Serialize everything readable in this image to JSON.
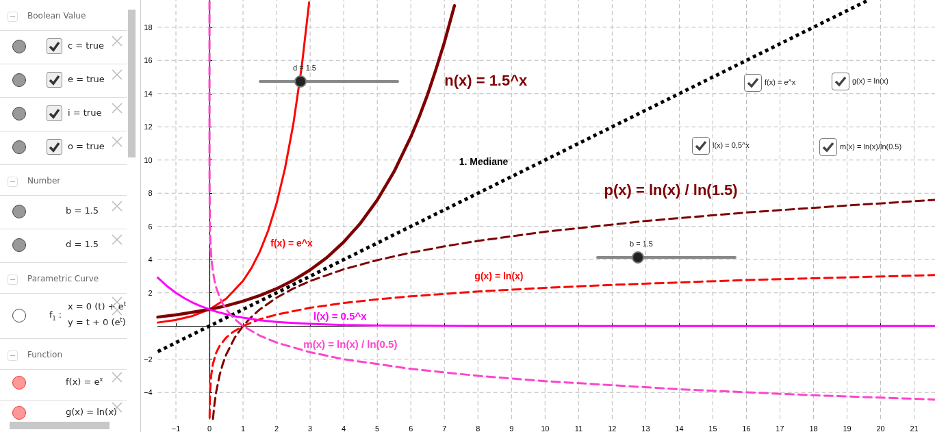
{
  "chart_data": [
    {
      "type": "other",
      "annotations": [
        "Boolean Value",
        "c = true",
        "e = true",
        "i = true",
        "o = true",
        "Number",
        "b = 1.5",
        "d = 1.5",
        "Parametric Curve",
        "f$_{1}$ :",
        "x = 0 (t) + e$^{t}$",
        "y = t + 0 (e$^{t}$)",
        "Function",
        "f(x) = e$^{x}$",
        "g(x) = ln(x)"
      ]
    },
    {
      "type": "line",
      "xlim": [
        -1.54,
        21.62
      ],
      "ylim": [
        -5.6,
        19.64
      ],
      "xticks": [
        -1,
        0,
        1,
        2,
        3,
        4,
        5,
        6,
        7,
        8,
        9,
        10,
        11,
        12,
        13,
        14,
        15,
        16,
        17,
        18,
        19,
        20,
        21
      ],
      "yticks": [
        -4,
        -2,
        2,
        4,
        6,
        8,
        10,
        12,
        14,
        16,
        18
      ],
      "grid": true,
      "marker": "none",
      "series": [
        {
          "name": "f(x) = e^x",
          "color": "#ff0000",
          "line_style": "solid",
          "x": [
            -1.54,
            -1,
            -0.5,
            0,
            0.5,
            1,
            1.25,
            1.5,
            1.75,
            2,
            2.25,
            2.5,
            2.75,
            2.97
          ],
          "values": [
            0.21,
            0.37,
            0.61,
            1,
            1.65,
            2.72,
            3.49,
            4.48,
            5.75,
            7.39,
            9.49,
            12.18,
            15.64,
            19.5
          ]
        },
        {
          "name": "n(x) = 1.5^x",
          "color": "#7f0000",
          "line_style": "solid",
          "x": [
            -1.54,
            -1,
            0,
            0.5,
            1,
            1.5,
            2,
            2.5,
            3,
            3.5,
            4,
            4.5,
            5,
            5.5,
            6,
            6.25,
            6.5,
            6.75,
            7,
            7.3
          ],
          "values": [
            0.54,
            0.67,
            1,
            1.22,
            1.5,
            1.84,
            2.25,
            2.76,
            3.38,
            4.13,
            5.06,
            6.2,
            7.59,
            9.3,
            11.39,
            12.6,
            13.95,
            15.47,
            17.09,
            19.3
          ]
        },
        {
          "name": "1. Mediane",
          "color": "#000000",
          "line_style": "dotted",
          "x": [
            -1.54,
            19.6
          ],
          "values": [
            -1.54,
            19.6
          ]
        },
        {
          "name": "p(x) = ln(x) / ln(1.5)",
          "color": "#7f0000",
          "line_style": "dashed",
          "x": [
            0.103,
            0.15,
            0.2,
            0.3,
            0.4,
            0.5,
            0.75,
            1,
            1.25,
            1.5,
            2,
            2.5,
            3,
            4,
            5,
            6,
            7,
            8,
            10,
            13,
            16,
            19,
            21.62
          ],
          "values": [
            -5.6,
            -4.68,
            -3.97,
            -2.97,
            -2.26,
            -1.71,
            -0.71,
            0,
            0.55,
            1,
            1.71,
            2.26,
            2.71,
            3.42,
            3.97,
            4.42,
            4.8,
            5.13,
            5.68,
            6.33,
            6.84,
            7.26,
            7.6
          ]
        },
        {
          "name": "g(x) = ln(x)",
          "color": "#ff0000",
          "line_style": "dashed",
          "x": [
            0.004,
            0.01,
            0.02,
            0.05,
            0.1,
            0.2,
            0.3,
            0.5,
            0.7,
            1,
            1.5,
            2,
            3,
            4,
            5,
            6,
            8,
            10,
            12,
            16,
            21.62
          ],
          "values": [
            -5.52,
            -4.61,
            -3.91,
            -3,
            -2.3,
            -1.61,
            -1.2,
            -0.69,
            -0.36,
            0,
            0.41,
            0.69,
            1.1,
            1.39,
            1.61,
            1.79,
            2.08,
            2.3,
            2.48,
            2.77,
            3.07
          ]
        },
        {
          "name": "l(x) = 0.5^x",
          "color": "#ff00ff",
          "line_style": "solid",
          "x": [
            -1.54,
            -1.25,
            -1,
            -0.75,
            -0.5,
            -0.25,
            0,
            0.25,
            0.5,
            0.75,
            1,
            1.5,
            2,
            2.5,
            3,
            4,
            5,
            6,
            8,
            10,
            21.62
          ],
          "values": [
            2.91,
            2.38,
            2,
            1.68,
            1.41,
            1.19,
            1,
            0.84,
            0.71,
            0.59,
            0.5,
            0.35,
            0.25,
            0.18,
            0.13,
            0.06,
            0.03,
            0.02,
            0,
            0,
            0
          ]
        },
        {
          "name": "m(x) = ln(x) / ln(0.5)",
          "color": "#ff44cc",
          "line_style": "dashed",
          "x": [
            1.3e-06,
            1e-05,
            0.0001,
            0.001,
            0.003,
            0.01,
            0.02,
            0.03,
            0.05,
            0.07,
            0.1,
            0.15,
            0.2,
            0.3,
            0.4,
            0.5,
            0.7,
            1,
            1.5,
            2,
            3,
            4,
            6,
            8,
            10,
            14,
            18,
            21.62
          ],
          "values": [
            19.55,
            16.6,
            13.29,
            9.97,
            8.38,
            6.64,
            5.64,
            5.06,
            4.32,
            3.84,
            3.32,
            2.74,
            2.32,
            1.74,
            1.32,
            1,
            0.51,
            0,
            -0.58,
            -1,
            -1.58,
            -2,
            -2.58,
            -3,
            -3.32,
            -3.81,
            -4.17,
            -4.43
          ]
        }
      ],
      "annotations": [
        "d = 1.5",
        "b = 1.5",
        "f(x) = e^x",
        "g(x) = ln(x)",
        "l(x) = 0,5^x",
        "m(x) = ln(x)/ln(0.5)"
      ]
    }
  ]
}
